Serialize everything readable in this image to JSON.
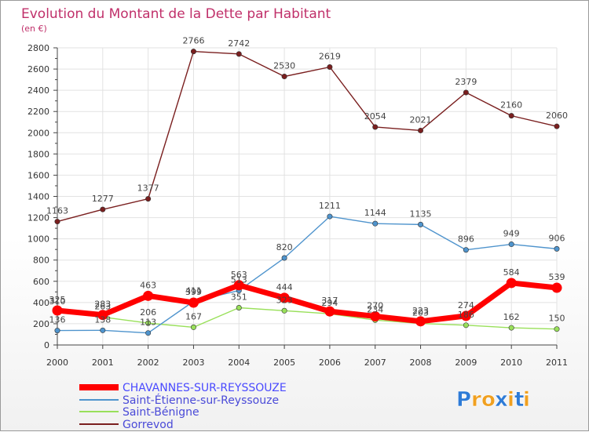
{
  "chart_data": {
    "type": "line",
    "title": "Evolution du Montant de la Dette par Habitant",
    "subtitle": "(en €)",
    "x": [
      "2000",
      "2001",
      "2002",
      "2003",
      "2004",
      "2005",
      "2006",
      "2007",
      "2008",
      "2009",
      "2010",
      "2011"
    ],
    "ylim": [
      0,
      2800
    ],
    "yticks": [
      0,
      200,
      400,
      600,
      800,
      1000,
      1200,
      1400,
      1600,
      1800,
      2000,
      2200,
      2400,
      2600,
      2800
    ],
    "grid": true,
    "legend_position": "bottom-left",
    "series": [
      {
        "name": "CHAVANNES-SUR-REYSSOUZE",
        "color": "#ff0000",
        "emphasis": true,
        "values": [
          325,
          283,
          463,
          399,
          563,
          444,
          317,
          270,
          223,
          274,
          584,
          539
        ]
      },
      {
        "name": "Saint-Étienne-sur-Reyssouze",
        "color": "#4f94cd",
        "values": [
          136,
          138,
          113,
          411,
          513,
          820,
          1211,
          1144,
          1135,
          896,
          949,
          906
        ]
      },
      {
        "name": "Saint-Bénigne",
        "color": "#99e05a",
        "values": [
          310,
          263,
          206,
          167,
          351,
          323,
          294,
          234,
          203,
          186,
          162,
          150
        ]
      },
      {
        "name": "Gorrevod",
        "color": "#7a1f1f",
        "values": [
          1163,
          1277,
          1377,
          2766,
          2742,
          2530,
          2619,
          2054,
          2021,
          2379,
          2160,
          2060
        ]
      }
    ]
  },
  "logo": {
    "text": "Proxiti",
    "letters": [
      "P",
      "r",
      "o",
      "x",
      "i",
      "t",
      "i"
    ]
  }
}
